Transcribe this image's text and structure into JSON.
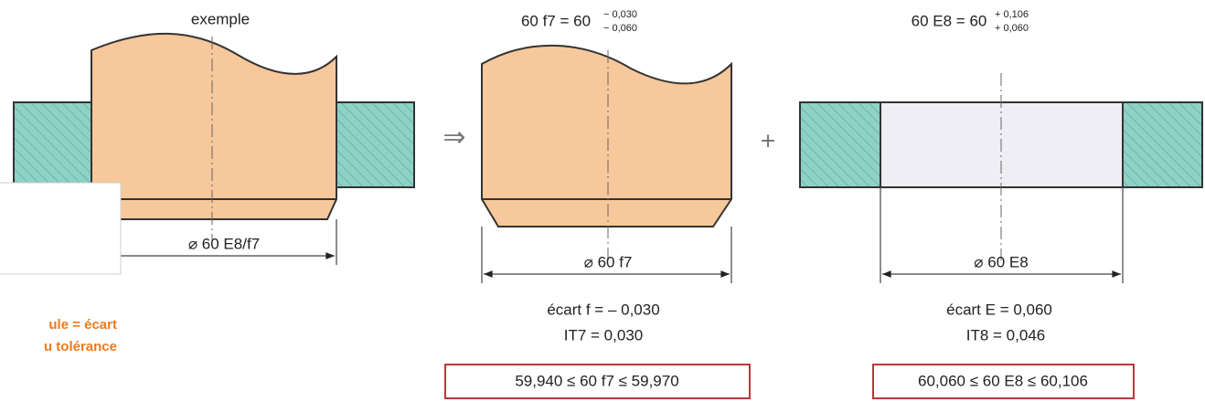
{
  "example": {
    "caption": "exemple",
    "dimension": "⌀ 60 E8/f7"
  },
  "shaft": {
    "designation": "60 f7 = 60",
    "upper_deviation": "− 0,030",
    "lower_deviation": "− 0,060",
    "dimension": "⌀ 60 f7",
    "notes": [
      "écart f = – 0,030",
      "IT7 = 0,030"
    ],
    "range": "59,940 ≤ 60 f7 ≤ 59,970"
  },
  "bore": {
    "designation": "60 E8 = 60",
    "upper_deviation": "+ 0,106",
    "lower_deviation": "+ 0,060",
    "dimension": "⌀ 60 E8",
    "notes": [
      "écart E = 0,060",
      "IT8 = 0,046"
    ],
    "range": "60,060 ≤ 60 E8 ≤ 60,106"
  },
  "side_note": [
    "ule = écart",
    "u tolérance"
  ]
}
